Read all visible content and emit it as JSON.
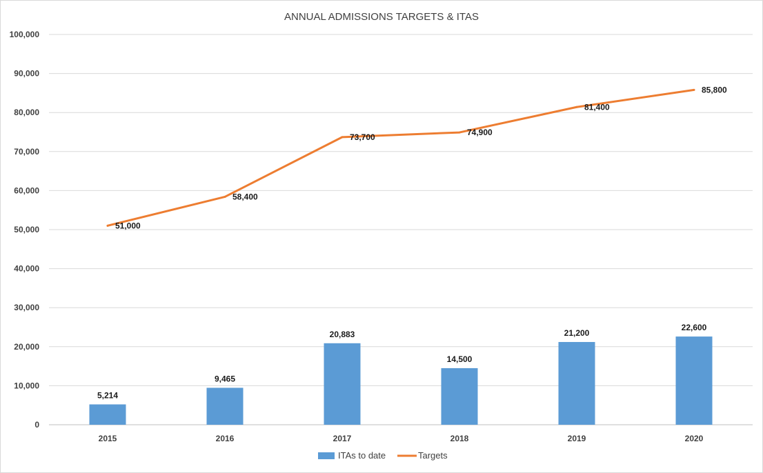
{
  "chart_data": {
    "type": "bar+line",
    "title": "ANNUAL ADMISSIONS TARGETS & ITAS",
    "categories": [
      "2015",
      "2016",
      "2017",
      "2018",
      "2019",
      "2020"
    ],
    "series": [
      {
        "name": "ITAs to date",
        "type": "bar",
        "values": [
          5214,
          9465,
          20883,
          14500,
          21200,
          22600
        ],
        "labels": [
          "5,214",
          "9,465",
          "20,883",
          "14,500",
          "21,200",
          "22,600"
        ],
        "color": "#5b9bd5"
      },
      {
        "name": "Targets",
        "type": "line",
        "values": [
          51000,
          58400,
          73700,
          74900,
          81400,
          85800
        ],
        "labels": [
          "51,000",
          "58,400",
          "73,700",
          "74,900",
          "81,400",
          "85,800"
        ],
        "color": "#ed7d31"
      }
    ],
    "ylim": [
      0,
      100000
    ],
    "yticks": [
      0,
      10000,
      20000,
      30000,
      40000,
      50000,
      60000,
      70000,
      80000,
      90000,
      100000
    ],
    "ytick_labels": [
      "0",
      "10,000",
      "20,000",
      "30,000",
      "40,000",
      "50,000",
      "60,000",
      "70,000",
      "80,000",
      "90,000",
      "100,000"
    ],
    "grid": true,
    "legend_position": "bottom"
  }
}
